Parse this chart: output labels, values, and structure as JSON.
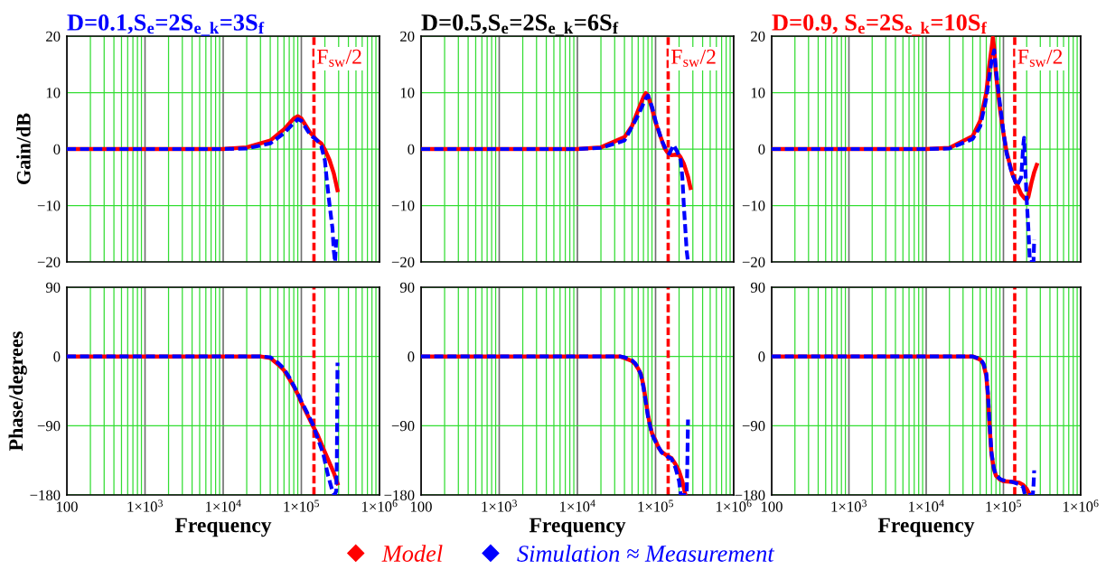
{
  "chart_data": [
    {
      "type": "line",
      "title": "D=0.1,S$_{e}$=2S$_{e_k}$=3S$_{f}$",
      "ylabel": "Gain/dB",
      "log": "x",
      "grid": true,
      "legend": "bottom",
      "tick_labels": "y",
      "xlim": [
        100,
        1000000
      ],
      "xticks": [
        100,
        1000,
        10000,
        100000,
        1000000
      ],
      "ylim": [
        -20,
        20
      ],
      "yticks": [
        {
          "value": -20,
          "label": "−20"
        },
        {
          "value": -10,
          "label": "−10"
        },
        0,
        10,
        20
      ],
      "ref_lines": [
        {
          "axis": "x",
          "value": 145000,
          "label": "F$_{sw}$/2",
          "color": "#ff0000",
          "line_style": "dashed"
        }
      ],
      "series": [
        {
          "name": "Model",
          "color": "#ff0000",
          "line_style": "solid",
          "x": [
            100,
            10000,
            20000,
            40000,
            60000,
            80000,
            90000,
            100000,
            130000,
            160000,
            180000,
            200000,
            230000,
            260000,
            290000
          ],
          "values": [
            0,
            0,
            0.3,
            1.5,
            3.5,
            5.4,
            5.8,
            5.4,
            2.9,
            1.5,
            1,
            -0.1,
            -2,
            -4.3,
            -7.3
          ]
        },
        {
          "name": "Simulation ≈ Measurement",
          "color": "#0000ff",
          "line_style": "dashed",
          "x": [
            100,
            10000,
            20000,
            40000,
            60000,
            80000,
            90000,
            100000,
            130000,
            160000,
            180000,
            200000,
            210000,
            230000,
            250000,
            260000,
            270000,
            280000
          ],
          "values": [
            0,
            0,
            0.1,
            1,
            2.8,
            4.6,
            5.3,
            5,
            2.5,
            1.5,
            0.5,
            -2,
            -5,
            -10,
            -14,
            -18,
            -20,
            -16
          ]
        }
      ]
    },
    {
      "type": "line",
      "title": "D=0.5,S$_{e}$=2S$_{e_k}$=6S$_{f}$",
      "log": "x",
      "grid": true,
      "tick_labels": "y",
      "xlim": [
        100,
        1000000
      ],
      "xticks": [
        100,
        1000,
        10000,
        100000,
        1000000
      ],
      "ylim": [
        -20,
        20
      ],
      "yticks": [
        {
          "value": -20,
          "label": "−20"
        },
        {
          "value": -10,
          "label": "−10"
        },
        0,
        10,
        20
      ],
      "ref_lines": [
        {
          "axis": "x",
          "value": 145000,
          "label": "F$_{sw}$/2",
          "color": "#ff0000",
          "line_style": "dashed"
        }
      ],
      "series": [
        {
          "color": "#ff0000",
          "line_style": "solid",
          "x": [
            100,
            10000,
            20000,
            40000,
            50000,
            60000,
            70000,
            75000,
            80000,
            90000,
            100000,
            120000,
            130000,
            140000,
            160000,
            180000,
            200000,
            210000,
            230000,
            260000,
            280000
          ],
          "values": [
            0,
            0,
            0.3,
            2.1,
            4.1,
            6.9,
            9.2,
            9.9,
            9.5,
            7.2,
            4.7,
            1.6,
            0.2,
            -0.5,
            -1.1,
            -1,
            -1.1,
            -1.5,
            -2.6,
            -4.9,
            -6.9
          ]
        },
        {
          "color": "#0000ff",
          "line_style": "dashed",
          "x": [
            100,
            10000,
            20000,
            40000,
            60000,
            75000,
            80000,
            90000,
            100000,
            120000,
            140000,
            150000,
            170000,
            190000,
            210000,
            220000,
            230000,
            240000,
            250000,
            260000
          ],
          "values": [
            0,
            0,
            0.2,
            1.5,
            6,
            9,
            9.5,
            7.5,
            5,
            1.5,
            -0.5,
            -0.8,
            0.7,
            -0.5,
            -2,
            -5,
            -10,
            -14,
            -18,
            -20
          ]
        }
      ]
    },
    {
      "type": "line",
      "title": "D=0.9, S$_{e}$=2S$_{e_k}$=10S$_{f}$",
      "log": "x",
      "grid": true,
      "tick_labels": "y",
      "xlim": [
        100,
        1000000
      ],
      "xticks": [
        100,
        1000,
        10000,
        100000,
        1000000
      ],
      "ylim": [
        -20,
        20
      ],
      "yticks": [
        {
          "value": -20,
          "label": "−20"
        },
        {
          "value": -10,
          "label": "−10"
        },
        0,
        10,
        20
      ],
      "ref_lines": [
        {
          "axis": "x",
          "value": 140000,
          "label": "F$_{sw}$/2",
          "color": "#ff0000",
          "line_style": "dashed"
        }
      ],
      "series": [
        {
          "color": "#ff0000",
          "line_style": "solid",
          "x": [
            100,
            10000,
            20000,
            40000,
            50000,
            60000,
            65000,
            70000,
            73000,
            76000,
            80000,
            90000,
            100000,
            110000,
            130000,
            150000,
            170000,
            190000,
            200000,
            210000,
            230000,
            250000,
            270000
          ],
          "values": [
            0,
            0,
            0.2,
            2.3,
            5,
            10,
            14.4,
            17.7,
            19.7,
            17.7,
            13.3,
            7.2,
            2.8,
            -0.5,
            -4.4,
            -6.3,
            -8,
            -8.8,
            -9,
            -8.5,
            -6,
            -4.1,
            -2.8
          ]
        },
        {
          "color": "#0000ff",
          "line_style": "dashed",
          "x": [
            100,
            10000,
            20000,
            40000,
            50000,
            60000,
            70000,
            76000,
            80000,
            90000,
            100000,
            110000,
            130000,
            150000,
            170000,
            180000,
            185000,
            190000,
            200000,
            210000,
            220000,
            245000,
            250000
          ],
          "values": [
            0,
            0,
            0.1,
            1.8,
            4,
            9,
            15.5,
            17.5,
            14,
            8,
            3,
            -0.8,
            -4.5,
            -6.5,
            -5,
            0.5,
            2,
            -2,
            -9,
            -14,
            -20,
            -20,
            -16
          ]
        }
      ]
    },
    {
      "type": "line",
      "ylabel": "Phase/degrees",
      "xlabel": "Frequency",
      "log": "x",
      "grid": true,
      "xlim": [
        100,
        1000000
      ],
      "xticks": [
        100,
        {
          "value": 1000,
          "label": "1×10$^{3}$"
        },
        {
          "value": 10000,
          "label": "1×10$^{4}$"
        },
        {
          "value": 100000,
          "label": "1×10$^{5}$"
        },
        {
          "value": 1000000,
          "label": "1×10$^{6}$"
        }
      ],
      "ylim": [
        -180,
        90
      ],
      "yticks": [
        {
          "value": -180,
          "label": "−180"
        },
        {
          "value": -90,
          "label": "−90"
        },
        0,
        90
      ],
      "ref_lines": [
        {
          "axis": "x",
          "value": 145000,
          "color": "#ff0000",
          "line_style": "dashed"
        }
      ],
      "series": [
        {
          "color": "#ff0000",
          "line_style": "solid",
          "x": [
            100,
            30000,
            40000,
            50000,
            60000,
            70000,
            80000,
            90000,
            100000,
            120000,
            140000,
            160000,
            190000,
            220000,
            260000,
            290000
          ],
          "values": [
            0,
            0,
            -2,
            -10,
            -18,
            -29,
            -39,
            -49,
            -60,
            -76,
            -90,
            -101,
            -119,
            -134,
            -151,
            -165
          ]
        },
        {
          "color": "#0000ff",
          "line_style": "dashed",
          "x": [
            100,
            30000,
            40000,
            50000,
            60000,
            70000,
            80000,
            90000,
            100000,
            120000,
            140000,
            160000,
            190000,
            220000,
            250000,
            265000,
            280000,
            285000,
            288000,
            290000
          ],
          "values": [
            0,
            0,
            -1,
            -8,
            -16,
            -27,
            -38,
            -48,
            -58,
            -74,
            -88,
            -105,
            -126,
            -155,
            -175,
            -180,
            -175,
            -130,
            -60,
            -8
          ]
        }
      ]
    },
    {
      "type": "line",
      "xlabel": "Frequency",
      "log": "x",
      "grid": true,
      "xlim": [
        100,
        1000000
      ],
      "xticks": [
        100,
        {
          "value": 1000,
          "label": "1×10$^{3}$"
        },
        {
          "value": 10000,
          "label": "1×10$^{4}$"
        },
        {
          "value": 100000,
          "label": "1×10$^{5}$"
        },
        {
          "value": 1000000,
          "label": "1×10$^{6}$"
        }
      ],
      "ylim": [
        -180,
        90
      ],
      "yticks": [
        {
          "value": -180,
          "label": "−180"
        },
        {
          "value": -90,
          "label": "−90"
        },
        0,
        90
      ],
      "ref_lines": [
        {
          "axis": "x",
          "value": 145000,
          "color": "#ff0000",
          "line_style": "dashed"
        }
      ],
      "series": [
        {
          "color": "#ff0000",
          "line_style": "solid",
          "x": [
            100,
            35000,
            40000,
            50000,
            55000,
            60000,
            65000,
            70000,
            75000,
            80000,
            85000,
            90000,
            100000,
            110000,
            120000,
            140000,
            160000,
            180000,
            200000,
            220000,
            240000
          ],
          "values": [
            0,
            0,
            -2,
            -6,
            -10,
            -16,
            -23,
            -38,
            -57,
            -76,
            -89,
            -100,
            -109,
            -119,
            -124,
            -129,
            -132,
            -140,
            -149,
            -162,
            -179
          ]
        },
        {
          "color": "#0000ff",
          "line_style": "dashed",
          "x": [
            100,
            35000,
            40000,
            50000,
            55000,
            60000,
            65000,
            70000,
            75000,
            80000,
            85000,
            90000,
            100000,
            120000,
            140000,
            160000,
            180000,
            200000,
            210000,
            250000,
            255000,
            260000
          ],
          "values": [
            0,
            0,
            -1,
            -5,
            -9,
            -15,
            -24,
            -40,
            -60,
            -78,
            -90,
            -101,
            -111,
            -125,
            -130,
            -133,
            -145,
            -162,
            -180,
            -180,
            -140,
            -82
          ]
        }
      ]
    },
    {
      "type": "line",
      "xlabel": "Frequency",
      "log": "x",
      "grid": true,
      "xlim": [
        100,
        1000000
      ],
      "xticks": [
        100,
        {
          "value": 1000,
          "label": "1×10$^{3}$"
        },
        {
          "value": 10000,
          "label": "1×10$^{4}$"
        },
        {
          "value": 100000,
          "label": "1×10$^{5}$"
        },
        {
          "value": 1000000,
          "label": "1×10$^{6}$"
        }
      ],
      "ylim": [
        -180,
        90
      ],
      "yticks": [
        {
          "value": -180,
          "label": "−180"
        },
        {
          "value": -90,
          "label": "−90"
        },
        0,
        90
      ],
      "ref_lines": [
        {
          "axis": "x",
          "value": 140000,
          "color": "#ff0000",
          "line_style": "dashed"
        }
      ],
      "series": [
        {
          "color": "#ff0000",
          "line_style": "solid",
          "x": [
            100,
            40000,
            50000,
            55000,
            60000,
            63000,
            66000,
            70000,
            75000,
            80000,
            90000,
            100000,
            130000,
            160000,
            180000,
            200000,
            220000
          ],
          "values": [
            0,
            0,
            -4,
            -10,
            -25,
            -51,
            -89,
            -127,
            -146,
            -155,
            -160,
            -162,
            -163,
            -164,
            -167,
            -172,
            -180
          ]
        },
        {
          "color": "#0000ff",
          "line_style": "dashed",
          "x": [
            100,
            40000,
            50000,
            55000,
            60000,
            63000,
            66000,
            70000,
            75000,
            80000,
            90000,
            100000,
            130000,
            160000,
            180000,
            190000,
            240000,
            245000,
            250000
          ],
          "values": [
            0,
            0,
            -3,
            -9,
            -22,
            -48,
            -86,
            -125,
            -145,
            -154,
            -159,
            -161,
            -163,
            -166,
            -170,
            -180,
            -180,
            -168,
            -148
          ]
        }
      ]
    }
  ]
}
